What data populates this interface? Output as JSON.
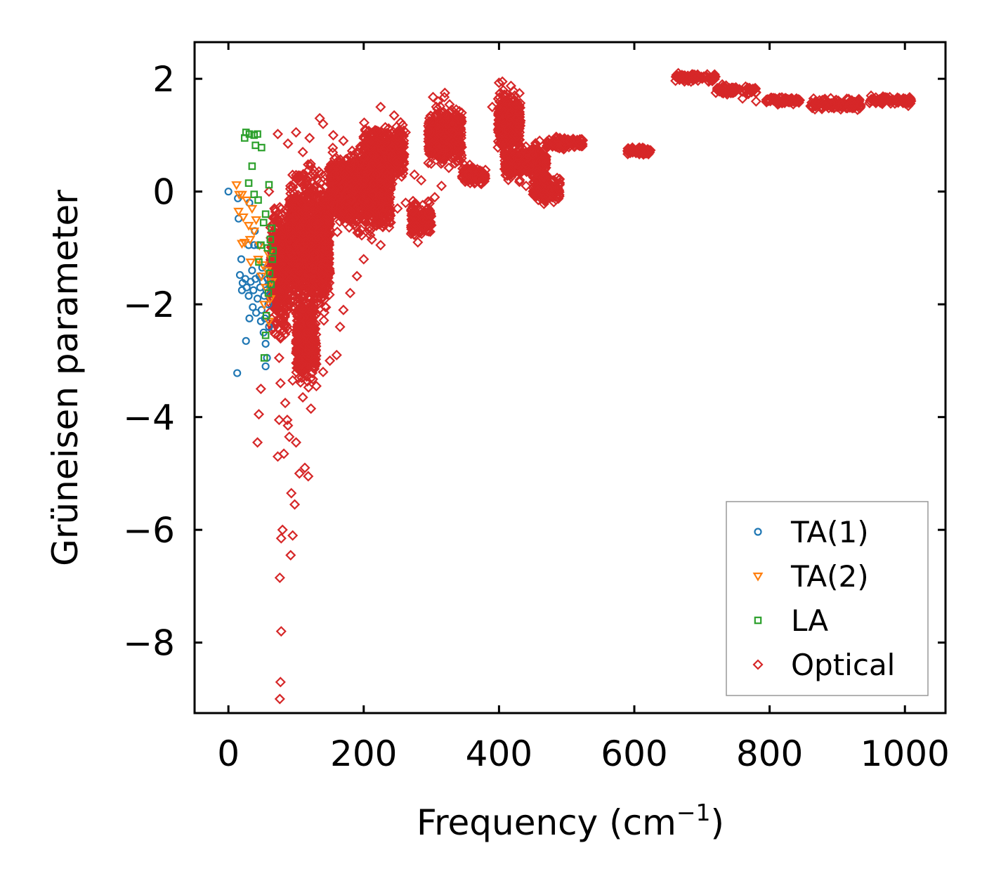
{
  "chart_data": {
    "type": "scatter",
    "title": "",
    "xlabel": "Frequency (cm",
    "xlabel_sup": "−1",
    "xlabel_close": ")",
    "ylabel": "Grüneisen parameter",
    "xlim": [
      -50,
      1060
    ],
    "ylim": [
      -9.25,
      2.65
    ],
    "xticks": [
      0,
      200,
      400,
      600,
      800,
      1000
    ],
    "yticks": [
      2,
      0,
      -2,
      -4,
      -6,
      -8
    ],
    "xtick_labels": [
      "0",
      "200",
      "400",
      "600",
      "800",
      "1000"
    ],
    "ytick_labels": [
      "2",
      "0",
      "−2",
      "−4",
      "−6",
      "−8"
    ],
    "legend_position": "lower-right",
    "series": [
      {
        "name": "TA(1)",
        "marker": "circle",
        "color": "#1f77b4",
        "points": [
          [
            0,
            0.0
          ],
          [
            14,
            -0.12
          ],
          [
            15,
            -0.48
          ],
          [
            19,
            -1.2
          ],
          [
            17,
            -1.48
          ],
          [
            21,
            -1.62
          ],
          [
            20,
            -1.75
          ],
          [
            25,
            -1.55
          ],
          [
            27,
            -1.7
          ],
          [
            30,
            -0.95
          ],
          [
            30,
            -1.85
          ],
          [
            31,
            -2.25
          ],
          [
            33,
            -1.6
          ],
          [
            35,
            -1.4
          ],
          [
            36,
            -2.05
          ],
          [
            37,
            -1.75
          ],
          [
            39,
            -0.7
          ],
          [
            40,
            -1.55
          ],
          [
            41,
            -2.15
          ],
          [
            43,
            -1.9
          ],
          [
            44,
            -0.95
          ],
          [
            46,
            -1.5
          ],
          [
            47,
            -1.7
          ],
          [
            48,
            -2.3
          ],
          [
            49,
            -2.1
          ],
          [
            50,
            -1.35
          ],
          [
            51,
            -1.6
          ],
          [
            52,
            -2.5
          ],
          [
            53,
            -1.85
          ],
          [
            54,
            -2.25
          ],
          [
            55,
            -2.7
          ],
          [
            55,
            -3.1
          ],
          [
            56,
            -1.75
          ],
          [
            57,
            -2.95
          ],
          [
            58,
            -1.55
          ],
          [
            59,
            -2.0
          ],
          [
            60,
            -2.4
          ],
          [
            61,
            -1.65
          ],
          [
            26,
            -2.65
          ],
          [
            13,
            -3.22
          ],
          [
            31,
            -0.2
          ],
          [
            38,
            -0.95
          ]
        ]
      },
      {
        "name": "TA(2)",
        "marker": "triangle-down",
        "color": "#ff7f0e",
        "points": [
          [
            12,
            0.12
          ],
          [
            16,
            -0.05
          ],
          [
            15,
            -0.35
          ],
          [
            20,
            -0.05
          ],
          [
            22,
            -0.45
          ],
          [
            24,
            -0.9
          ],
          [
            27,
            -0.15
          ],
          [
            30,
            -0.6
          ],
          [
            32,
            -0.85
          ],
          [
            35,
            -0.3
          ],
          [
            38,
            -0.7
          ],
          [
            41,
            -0.5
          ],
          [
            44,
            -1.2
          ],
          [
            46,
            -0.95
          ],
          [
            49,
            -1.5
          ],
          [
            51,
            -1.3
          ],
          [
            53,
            -2.0
          ],
          [
            55,
            -1.7
          ],
          [
            57,
            -1.4
          ],
          [
            59,
            -1.1
          ],
          [
            60,
            -2.3
          ],
          [
            62,
            -1.9
          ],
          [
            64,
            -1.6
          ],
          [
            20,
            -0.92
          ],
          [
            33,
            -1.25
          ]
        ]
      },
      {
        "name": "LA",
        "marker": "square",
        "color": "#2ca02c",
        "points": [
          [
            26,
            1.05
          ],
          [
            24,
            0.95
          ],
          [
            31,
            1.02
          ],
          [
            38,
            1.0
          ],
          [
            43,
            1.02
          ],
          [
            40,
            0.82
          ],
          [
            49,
            0.78
          ],
          [
            35,
            0.45
          ],
          [
            30,
            0.15
          ],
          [
            60,
            0.12
          ],
          [
            38,
            -0.05
          ],
          [
            44,
            -0.15
          ],
          [
            55,
            -0.4
          ],
          [
            52,
            -0.55
          ],
          [
            62,
            -0.85
          ],
          [
            58,
            -1.0
          ],
          [
            65,
            -1.2
          ],
          [
            61,
            -1.45
          ],
          [
            63,
            -1.65
          ],
          [
            59,
            -1.8
          ],
          [
            56,
            -2.2
          ],
          [
            53,
            -2.95
          ],
          [
            55,
            -2.55
          ],
          [
            48,
            -0.95
          ],
          [
            45,
            -1.25
          ],
          [
            64,
            -0.65
          ],
          [
            66,
            -1.05
          ]
        ]
      },
      {
        "name": "Optical",
        "marker": "diamond",
        "color": "#d62728",
        "points": [
          [
            76,
            -9.0
          ],
          [
            77,
            -8.7
          ],
          [
            78,
            -7.8
          ],
          [
            76,
            -6.85
          ],
          [
            80,
            -6.0
          ],
          [
            78,
            -6.15
          ],
          [
            92,
            -6.45
          ],
          [
            95,
            -6.1
          ],
          [
            98,
            -5.55
          ],
          [
            93,
            -5.35
          ],
          [
            105,
            -5.0
          ],
          [
            118,
            -5.05
          ],
          [
            113,
            -4.9
          ],
          [
            82,
            -4.65
          ],
          [
            73,
            -4.7
          ],
          [
            100,
            -4.45
          ],
          [
            43,
            -4.45
          ],
          [
            45,
            -3.95
          ],
          [
            48,
            -3.5
          ],
          [
            87,
            -4.05
          ],
          [
            75,
            -4.05
          ],
          [
            95,
            -3.35
          ],
          [
            110,
            -3.65
          ],
          [
            122,
            -3.85
          ],
          [
            130,
            -3.45
          ],
          [
            140,
            -3.2
          ],
          [
            150,
            -3.0
          ],
          [
            160,
            -2.9
          ],
          [
            165,
            -2.4
          ],
          [
            170,
            -2.1
          ],
          [
            180,
            -1.8
          ],
          [
            190,
            -1.5
          ],
          [
            200,
            -1.2
          ],
          [
            212,
            -0.85
          ],
          [
            225,
            -0.95
          ],
          [
            240,
            -0.55
          ],
          [
            250,
            -0.3
          ],
          [
            262,
            -0.2
          ],
          [
            270,
            -0.75
          ],
          [
            280,
            -0.9
          ],
          [
            287,
            -0.5
          ],
          [
            295,
            -0.4
          ],
          [
            305,
            -0.1
          ],
          [
            315,
            0.1
          ],
          [
            60,
            0.0
          ],
          [
            68,
            -0.3
          ],
          [
            72,
            -0.6
          ],
          [
            66,
            -1.0
          ],
          [
            70,
            -1.6
          ],
          [
            73,
            -2.05
          ],
          [
            74,
            -2.55
          ],
          [
            75,
            -2.95
          ],
          [
            77,
            -3.4
          ],
          [
            84,
            -3.75
          ],
          [
            88,
            -4.15
          ],
          [
            90,
            -4.35
          ],
          [
            135,
            1.3
          ],
          [
            140,
            1.2
          ],
          [
            110,
            0.7
          ],
          [
            100,
            1.05
          ],
          [
            73,
            1.02
          ],
          [
            88,
            0.85
          ],
          [
            120,
            0.95
          ],
          [
            155,
            1.0
          ],
          [
            170,
            0.9
          ],
          [
            185,
            0.6
          ],
          [
            195,
            0.8
          ],
          [
            210,
            0.85
          ],
          [
            225,
            1.5
          ],
          [
            245,
            1.35
          ],
          [
            262,
            1.05
          ],
          [
            275,
            0.3
          ],
          [
            285,
            0.2
          ],
          [
            300,
            0.7
          ],
          [
            310,
            1.6
          ],
          [
            320,
            1.75
          ],
          [
            330,
            1.45
          ],
          [
            340,
            1.15
          ],
          [
            355,
            0.3
          ],
          [
            370,
            0.35
          ],
          [
            390,
            1.5
          ],
          [
            405,
            1.95
          ],
          [
            420,
            1.6
          ],
          [
            430,
            0.6
          ],
          [
            440,
            0.1
          ],
          [
            450,
            0.65
          ],
          [
            460,
            0.9
          ],
          [
            470,
            0.5
          ],
          [
            480,
            0.85
          ],
          [
            490,
            0.95
          ],
          [
            505,
            0.9
          ],
          [
            520,
            0.85
          ],
          [
            595,
            0.75
          ],
          [
            610,
            0.72
          ],
          [
            620,
            0.7
          ],
          [
            665,
            2.1
          ],
          [
            690,
            2.05
          ],
          [
            710,
            1.95
          ],
          [
            730,
            1.9
          ],
          [
            745,
            1.75
          ],
          [
            760,
            1.65
          ],
          [
            780,
            1.6
          ],
          [
            805,
            1.65
          ],
          [
            820,
            1.6
          ],
          [
            835,
            1.55
          ],
          [
            865,
            1.65
          ],
          [
            880,
            1.55
          ],
          [
            900,
            1.5
          ],
          [
            915,
            1.48
          ],
          [
            930,
            1.45
          ],
          [
            950,
            1.7
          ],
          [
            970,
            1.62
          ],
          [
            990,
            1.58
          ],
          [
            1005,
            1.52
          ]
        ],
        "dense_regions": [
          {
            "x_range": [
              62,
              90
            ],
            "y_center": -1.4,
            "y_spread": 1.4
          },
          {
            "x_range": [
              90,
              150
            ],
            "y_center": -0.9,
            "y_spread": 1.6
          },
          {
            "x_range": [
              100,
              130
            ],
            "y_center": -2.6,
            "y_spread": 1.0
          },
          {
            "x_range": [
              150,
              240
            ],
            "y_center": 0.0,
            "y_spread": 0.9
          },
          {
            "x_range": [
              200,
              260
            ],
            "y_center": 0.7,
            "y_spread": 0.6
          },
          {
            "x_range": [
              270,
              300
            ],
            "y_center": -0.5,
            "y_spread": 0.4
          },
          {
            "x_range": [
              295,
              345
            ],
            "y_center": 1.0,
            "y_spread": 0.7
          },
          {
            "x_range": [
              345,
              380
            ],
            "y_center": 0.3,
            "y_spread": 0.25
          },
          {
            "x_range": [
              398,
              432
            ],
            "y_center": 1.3,
            "y_spread": 0.7
          },
          {
            "x_range": [
              408,
              470
            ],
            "y_center": 0.5,
            "y_spread": 0.4
          },
          {
            "x_range": [
              450,
              490
            ],
            "y_center": 0.05,
            "y_spread": 0.3
          },
          {
            "x_range": [
              470,
              525
            ],
            "y_center": 0.85,
            "y_spread": 0.15
          },
          {
            "x_range": [
              590,
              625
            ],
            "y_center": 0.72,
            "y_spread": 0.08
          },
          {
            "x_range": [
              660,
              720
            ],
            "y_center": 2.02,
            "y_spread": 0.1
          },
          {
            "x_range": [
              720,
              780
            ],
            "y_center": 1.8,
            "y_spread": 0.12
          },
          {
            "x_range": [
              795,
              845
            ],
            "y_center": 1.62,
            "y_spread": 0.08
          },
          {
            "x_range": [
              860,
              935
            ],
            "y_center": 1.55,
            "y_spread": 0.12
          },
          {
            "x_range": [
              945,
              1010
            ],
            "y_center": 1.62,
            "y_spread": 0.1
          }
        ]
      }
    ]
  }
}
